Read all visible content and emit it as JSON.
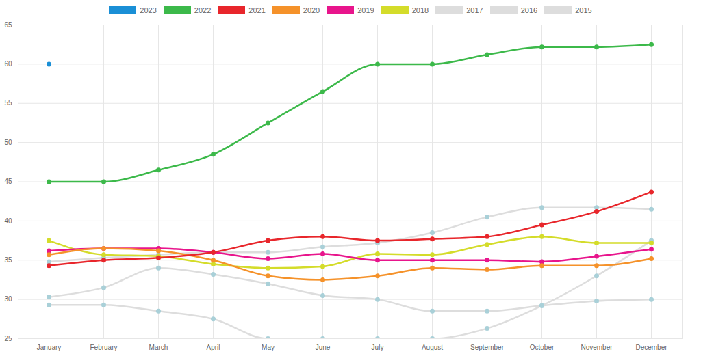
{
  "chart_data": {
    "type": "line",
    "categories": [
      "January",
      "February",
      "March",
      "April",
      "May",
      "June",
      "July",
      "August",
      "September",
      "October",
      "November",
      "December"
    ],
    "series": [
      {
        "name": "2023",
        "color": "#1a8fd6",
        "values": [
          60,
          null,
          null,
          null,
          null,
          null,
          null,
          null,
          null,
          null,
          null,
          null
        ]
      },
      {
        "name": "2022",
        "color": "#3cb94a",
        "values": [
          45,
          45,
          46.5,
          48.5,
          52.5,
          56.5,
          60,
          60,
          61.2,
          62.2,
          62.2,
          62.5
        ]
      },
      {
        "name": "2021",
        "color": "#e8262b",
        "values": [
          34.3,
          35,
          35.3,
          36,
          37.5,
          38,
          37.5,
          37.7,
          38,
          39.5,
          41.2,
          43.7
        ]
      },
      {
        "name": "2020",
        "color": "#f5922a",
        "values": [
          35.7,
          36.5,
          36.2,
          35,
          33,
          32.5,
          33,
          34,
          33.8,
          34.3,
          34.3,
          35.2
        ]
      },
      {
        "name": "2019",
        "color": "#e8158c",
        "values": [
          36.2,
          36.5,
          36.5,
          36,
          35.2,
          35.8,
          35,
          35,
          35,
          34.8,
          35.5,
          36.4
        ]
      },
      {
        "name": "2018",
        "color": "#d4dc2a",
        "values": [
          37.5,
          35.7,
          35.5,
          34.5,
          34,
          34.2,
          35.8,
          35.7,
          37,
          38,
          37.2,
          37.2
        ]
      },
      {
        "name": "2017",
        "color": "#dddddd",
        "values": [
          34.8,
          35.3,
          35.7,
          36,
          36,
          36.7,
          37.2,
          38.5,
          40.5,
          41.7,
          41.7,
          41.5
        ]
      },
      {
        "name": "2016",
        "color": "#dddddd",
        "values": [
          30.3,
          31.5,
          34,
          33.2,
          32,
          30.5,
          30,
          28.5,
          28.5,
          29.2,
          29.8,
          30
        ]
      },
      {
        "name": "2015",
        "color": "#dddddd",
        "values": [
          29.3,
          29.3,
          28.5,
          27.5,
          25,
          25,
          25,
          25,
          26.3,
          29.2,
          33,
          37.5
        ]
      }
    ],
    "ylim": [
      25,
      65
    ],
    "yticks": [
      25,
      30,
      35,
      40,
      45,
      50,
      55,
      60,
      65
    ],
    "grid": true,
    "legend": "top",
    "marker": "circle",
    "line_style": "solid"
  }
}
